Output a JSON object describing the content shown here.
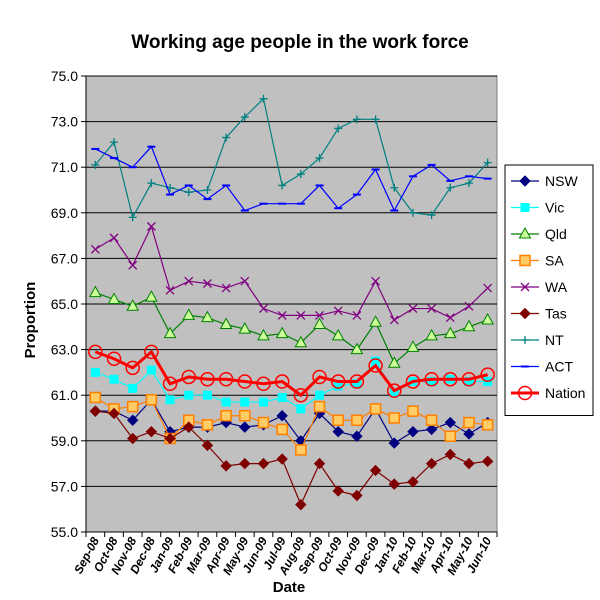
{
  "chart_data": {
    "type": "line",
    "title": "Working age people in the work force",
    "xlabel": "Date",
    "ylabel": "Proportion",
    "ylim": [
      55.0,
      75.0
    ],
    "yticks": [
      "55.0",
      "57.0",
      "59.0",
      "61.0",
      "63.0",
      "65.0",
      "67.0",
      "69.0",
      "71.0",
      "73.0",
      "75.0"
    ],
    "grid": true,
    "plot_background": "#c0c0c0",
    "legend_position": "right",
    "categories": [
      "Sep-08",
      "Oct-08",
      "Nov-08",
      "Dec-08",
      "Jan-09",
      "Feb-09",
      "Mar-09",
      "Apr-09",
      "May-09",
      "Jun-09",
      "Jul-09",
      "Aug-09",
      "Sep-09",
      "Oct-09",
      "Nov-09",
      "Dec-09",
      "Jan-10",
      "Feb-10",
      "Mar-10",
      "Apr-10",
      "May-10",
      "Jun-10"
    ],
    "series": [
      {
        "name": "NSW",
        "color": "#000080",
        "marker": "diamond",
        "values": [
          60.3,
          60.3,
          59.9,
          60.8,
          59.4,
          59.6,
          59.6,
          59.8,
          59.6,
          59.7,
          60.1,
          59.0,
          60.2,
          59.4,
          59.2,
          60.4,
          58.9,
          59.4,
          59.5,
          59.8,
          59.3,
          59.8
        ]
      },
      {
        "name": "Vic",
        "color": "#00ffff",
        "marker": "square",
        "values": [
          62.0,
          61.7,
          61.3,
          62.1,
          60.8,
          61.0,
          61.0,
          60.7,
          60.7,
          60.7,
          60.9,
          60.4,
          61.0,
          61.4,
          61.5,
          62.5,
          61.1,
          61.6,
          61.6,
          61.7,
          61.6,
          61.6
        ]
      },
      {
        "name": "Qld",
        "color": "#008000",
        "marker": "triangle",
        "values": [
          65.5,
          65.2,
          64.9,
          65.3,
          63.7,
          64.5,
          64.4,
          64.1,
          63.9,
          63.6,
          63.7,
          63.3,
          64.1,
          63.6,
          63.0,
          64.2,
          62.4,
          63.1,
          63.6,
          63.7,
          64.0,
          64.3
        ]
      },
      {
        "name": "SA",
        "color": "#ff8000",
        "marker": "square",
        "values": [
          60.9,
          60.4,
          60.5,
          60.8,
          59.1,
          59.9,
          59.7,
          60.1,
          60.1,
          59.8,
          59.5,
          58.6,
          60.5,
          59.9,
          59.9,
          60.4,
          60.0,
          60.3,
          59.9,
          59.2,
          59.8,
          59.7
        ]
      },
      {
        "name": "WA",
        "color": "#800080",
        "marker": "x",
        "values": [
          67.4,
          67.9,
          66.7,
          68.4,
          65.6,
          66.0,
          65.9,
          65.7,
          66.0,
          64.8,
          64.5,
          64.5,
          64.5,
          64.7,
          64.5,
          66.0,
          64.3,
          64.8,
          64.8,
          64.4,
          64.9,
          65.7
        ]
      },
      {
        "name": "Tas",
        "color": "#800000",
        "marker": "diamond",
        "values": [
          60.3,
          60.2,
          59.1,
          59.4,
          59.1,
          59.6,
          58.8,
          57.9,
          58.0,
          58.0,
          58.2,
          56.2,
          58.0,
          56.8,
          56.6,
          57.7,
          57.1,
          57.2,
          58.0,
          58.4,
          58.0,
          58.1
        ]
      },
      {
        "name": "NT",
        "color": "#008080",
        "marker": "plus",
        "values": [
          71.1,
          72.1,
          68.8,
          70.3,
          70.1,
          69.9,
          70.0,
          72.3,
          73.2,
          74.0,
          70.2,
          70.7,
          71.4,
          72.7,
          73.1,
          73.1,
          70.1,
          69.0,
          68.9,
          70.1,
          70.3,
          71.2
        ]
      },
      {
        "name": "ACT",
        "color": "#0000ff",
        "marker": "dash",
        "values": [
          71.8,
          71.4,
          71.0,
          71.9,
          69.8,
          70.2,
          69.6,
          70.2,
          69.1,
          69.4,
          69.4,
          69.4,
          70.2,
          69.2,
          69.8,
          70.9,
          69.1,
          70.6,
          71.1,
          70.4,
          70.6,
          70.5
        ]
      },
      {
        "name": "Nation",
        "color": "#ff0000",
        "marker": "circle",
        "bold": true,
        "values": [
          62.9,
          62.6,
          62.2,
          62.9,
          61.5,
          61.8,
          61.7,
          61.7,
          61.6,
          61.5,
          61.6,
          61.0,
          61.8,
          61.6,
          61.6,
          62.3,
          61.2,
          61.6,
          61.7,
          61.7,
          61.7,
          61.9
        ]
      }
    ]
  }
}
